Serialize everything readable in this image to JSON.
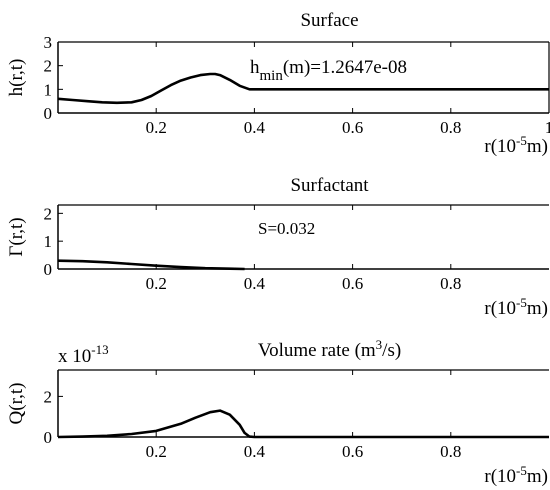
{
  "chart_data": [
    {
      "type": "line",
      "title": "Surface",
      "ylabel": "h(r,t)",
      "xlabel": "r(10⁻⁵m)",
      "xlim": [
        0,
        1
      ],
      "ylim": [
        0,
        3
      ],
      "xticks": [
        0.2,
        0.4,
        0.6,
        0.8,
        1
      ],
      "xtick_labels": [
        "0.2",
        "0.4",
        "0.6",
        "0.8",
        "1"
      ],
      "yticks": [
        0,
        1,
        2,
        3
      ],
      "ytick_labels": [
        "0",
        "1",
        "2",
        "3"
      ],
      "annotation": "h_min(m)=1.2647e-08",
      "series": [
        {
          "x": [
            0,
            0.03,
            0.06,
            0.09,
            0.12,
            0.15,
            0.17,
            0.19,
            0.21,
            0.23,
            0.25,
            0.27,
            0.29,
            0.31,
            0.32,
            0.33,
            0.35,
            0.37,
            0.39,
            0.4,
            0.45,
            0.5,
            0.6,
            0.7,
            0.8,
            0.9,
            1
          ],
          "y": [
            0.6,
            0.55,
            0.5,
            0.45,
            0.43,
            0.45,
            0.55,
            0.72,
            0.95,
            1.18,
            1.37,
            1.5,
            1.6,
            1.65,
            1.65,
            1.6,
            1.4,
            1.15,
            1.0,
            1.0,
            1.0,
            1.0,
            1.0,
            1.0,
            1.0,
            1.0,
            1.0
          ]
        }
      ],
      "grid": false
    },
    {
      "type": "line",
      "title": "Surfactant",
      "ylabel": "Γ(r,t)",
      "xlabel": "r(10⁻⁵m)",
      "xlim": [
        0,
        1
      ],
      "ylim": [
        0,
        2.3
      ],
      "xticks": [
        0.2,
        0.4,
        0.6,
        0.8
      ],
      "xtick_labels": [
        "0.2",
        "0.4",
        "0.6",
        "0.8"
      ],
      "yticks": [
        0,
        1,
        2
      ],
      "ytick_labels": [
        "0",
        "1",
        "2"
      ],
      "annotation": "S=0.032",
      "series": [
        {
          "x": [
            0,
            0.05,
            0.1,
            0.15,
            0.2,
            0.25,
            0.3,
            0.35,
            0.38
          ],
          "y": [
            0.3,
            0.28,
            0.24,
            0.18,
            0.12,
            0.07,
            0.03,
            0.01,
            0.0
          ]
        }
      ],
      "grid": false
    },
    {
      "type": "line",
      "title": "Volume rate (m³/s)",
      "ylabel": "Q(r,t)",
      "xlabel": "r(10⁻⁵m)",
      "xlim": [
        0,
        1
      ],
      "ylim": [
        0,
        3.3
      ],
      "xticks": [
        0.2,
        0.4,
        0.6,
        0.8
      ],
      "xtick_labels": [
        "0.2",
        "0.4",
        "0.6",
        "0.8"
      ],
      "yticks": [
        0,
        2
      ],
      "ytick_labels": [
        "0",
        "2"
      ],
      "scale_label": "x 10⁻¹³",
      "series": [
        {
          "x": [
            0,
            0.05,
            0.1,
            0.15,
            0.2,
            0.25,
            0.28,
            0.31,
            0.33,
            0.35,
            0.37,
            0.38,
            0.39,
            0.4,
            0.5,
            0.6,
            0.7,
            0.8,
            0.9,
            1
          ],
          "y": [
            0.0,
            0.02,
            0.06,
            0.15,
            0.3,
            0.65,
            0.95,
            1.22,
            1.3,
            1.1,
            0.6,
            0.2,
            0.02,
            0.0,
            0.0,
            0.0,
            0.0,
            0.0,
            0.0,
            0.0
          ]
        }
      ],
      "grid": false
    }
  ]
}
